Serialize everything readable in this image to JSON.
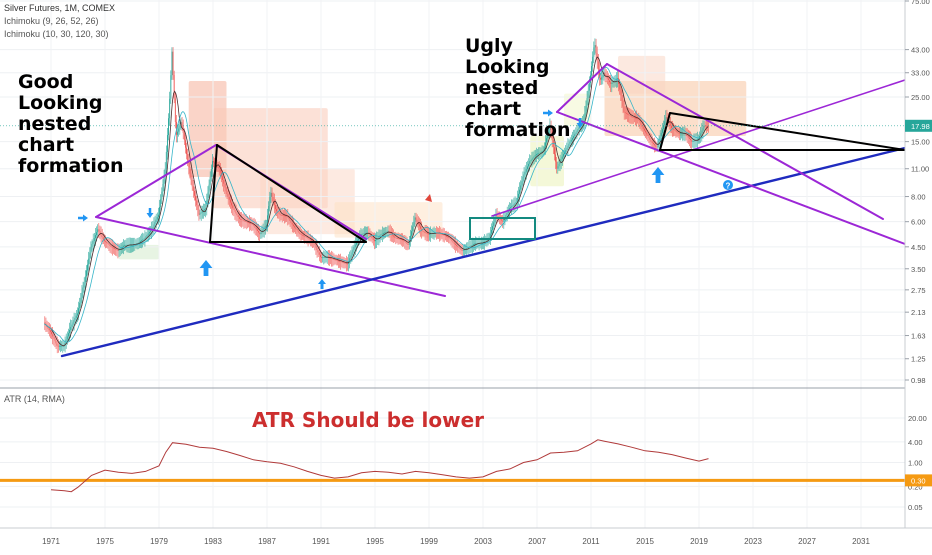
{
  "header": {
    "symbol_line": "Silver Futures, 1M, COMEX",
    "ichimoku_1": "Ichimoku (9, 26, 52, 26)",
    "ichimoku_2": "Ichimoku (10, 30, 120, 30)",
    "atr_label": "ATR (14, RMA)"
  },
  "annotations": {
    "good": "Good\nLooking\nnested\nchart\nformation",
    "ugly": "Ugly\nLooking\nnested\nchart\nformation",
    "atr_note": "ATR Should be lower"
  },
  "colors": {
    "price_up": "#26a69a",
    "price_down": "#ef5350",
    "purple_line": "#9c27d6",
    "blue_line": "#1f2bbf",
    "triangle": "#000000",
    "marker_arrow": "#2196f3",
    "atr_line": "#b03a3a",
    "atr_level": "#f59a12",
    "last_price_badge": "#26a69a",
    "box": "#138a80"
  },
  "chart_data": {
    "type": "candlestick",
    "title": "Silver Futures, 1M, COMEX",
    "price_scale": "log",
    "x_ticks": [
      "1971",
      "1975",
      "1979",
      "1983",
      "1987",
      "1991",
      "1995",
      "1999",
      "2003",
      "2007",
      "2011",
      "2015",
      "2019",
      "2023",
      "2027",
      "2031"
    ],
    "y_ticks": [
      75.0,
      43.0,
      33.0,
      25.0,
      15.0,
      11.0,
      8.0,
      6.0,
      4.5,
      3.5,
      2.75,
      2.13,
      1.63,
      1.25,
      0.98
    ],
    "last_price": 17.98,
    "price_path": [
      [
        1970.5,
        1.9
      ],
      [
        1971.0,
        1.7
      ],
      [
        1971.5,
        1.45
      ],
      [
        1972.0,
        1.45
      ],
      [
        1972.5,
        1.8
      ],
      [
        1973.0,
        2.1
      ],
      [
        1973.5,
        3.0
      ],
      [
        1974.0,
        4.5
      ],
      [
        1974.5,
        5.5
      ],
      [
        1975.0,
        4.8
      ],
      [
        1975.5,
        4.5
      ],
      [
        1976.0,
        4.3
      ],
      [
        1976.5,
        4.6
      ],
      [
        1977.0,
        4.6
      ],
      [
        1977.5,
        4.7
      ],
      [
        1978.0,
        5.0
      ],
      [
        1978.5,
        5.5
      ],
      [
        1979.0,
        6.5
      ],
      [
        1979.5,
        11.0
      ],
      [
        1979.8,
        22.0
      ],
      [
        1980.0,
        42.0
      ],
      [
        1980.3,
        16.0
      ],
      [
        1980.7,
        19.0
      ],
      [
        1981.0,
        14.0
      ],
      [
        1981.5,
        9.0
      ],
      [
        1982.0,
        6.5
      ],
      [
        1982.5,
        7.0
      ],
      [
        1983.0,
        12.0
      ],
      [
        1983.5,
        11.0
      ],
      [
        1984.0,
        8.5
      ],
      [
        1984.5,
        7.0
      ],
      [
        1985.0,
        6.2
      ],
      [
        1985.5,
        6.0
      ],
      [
        1986.0,
        5.8
      ],
      [
        1986.5,
        5.2
      ],
      [
        1987.0,
        5.8
      ],
      [
        1987.3,
        8.5
      ],
      [
        1987.7,
        6.8
      ],
      [
        1988.0,
        6.5
      ],
      [
        1988.5,
        6.4
      ],
      [
        1989.0,
        5.7
      ],
      [
        1989.5,
        5.2
      ],
      [
        1990.0,
        5.0
      ],
      [
        1990.5,
        4.7
      ],
      [
        1991.0,
        4.0
      ],
      [
        1991.5,
        4.0
      ],
      [
        1992.0,
        3.9
      ],
      [
        1992.5,
        3.8
      ],
      [
        1993.0,
        3.7
      ],
      [
        1993.5,
        4.5
      ],
      [
        1994.0,
        5.2
      ],
      [
        1994.5,
        5.3
      ],
      [
        1995.0,
        4.8
      ],
      [
        1995.5,
        5.2
      ],
      [
        1996.0,
        5.4
      ],
      [
        1996.5,
        5.0
      ],
      [
        1997.0,
        4.9
      ],
      [
        1997.5,
        4.6
      ],
      [
        1998.0,
        6.3
      ],
      [
        1998.5,
        5.4
      ],
      [
        1999.0,
        5.2
      ],
      [
        1999.5,
        5.3
      ],
      [
        2000.0,
        5.2
      ],
      [
        2000.5,
        5.0
      ],
      [
        2001.0,
        4.6
      ],
      [
        2001.5,
        4.3
      ],
      [
        2002.0,
        4.5
      ],
      [
        2002.5,
        4.7
      ],
      [
        2003.0,
        4.7
      ],
      [
        2003.5,
        5.0
      ],
      [
        2004.0,
        6.5
      ],
      [
        2004.5,
        6.0
      ],
      [
        2005.0,
        7.0
      ],
      [
        2005.5,
        7.5
      ],
      [
        2006.0,
        10.0
      ],
      [
        2006.5,
        12.0
      ],
      [
        2007.0,
        13.0
      ],
      [
        2007.5,
        13.5
      ],
      [
        2008.0,
        18.0
      ],
      [
        2008.5,
        11.0
      ],
      [
        2009.0,
        13.0
      ],
      [
        2009.5,
        15.0
      ],
      [
        2010.0,
        17.0
      ],
      [
        2010.5,
        19.0
      ],
      [
        2011.0,
        32.0
      ],
      [
        2011.3,
        47.0
      ],
      [
        2011.7,
        30.0
      ],
      [
        2012.0,
        33.0
      ],
      [
        2012.5,
        29.0
      ],
      [
        2013.0,
        31.0
      ],
      [
        2013.5,
        21.0
      ],
      [
        2014.0,
        20.0
      ],
      [
        2014.5,
        19.5
      ],
      [
        2015.0,
        17.0
      ],
      [
        2015.5,
        15.0
      ],
      [
        2015.9,
        14.0
      ],
      [
        2016.3,
        17.0
      ],
      [
        2016.6,
        20.0
      ],
      [
        2017.0,
        17.5
      ],
      [
        2017.5,
        16.5
      ],
      [
        2018.0,
        16.5
      ],
      [
        2018.5,
        15.0
      ],
      [
        2019.0,
        15.5
      ],
      [
        2019.4,
        18.0
      ],
      [
        2019.7,
        17.98
      ]
    ],
    "atr_ticks": [
      20.0,
      4.0,
      1.0,
      0.2,
      0.05
    ],
    "atr_level": 0.3,
    "atr_path": [
      [
        1971.0,
        0.16
      ],
      [
        1972.0,
        0.15
      ],
      [
        1972.5,
        0.14
      ],
      [
        1973.0,
        0.19
      ],
      [
        1974.0,
        0.42
      ],
      [
        1975.0,
        0.6
      ],
      [
        1976.0,
        0.52
      ],
      [
        1977.0,
        0.48
      ],
      [
        1978.0,
        0.55
      ],
      [
        1979.0,
        0.8
      ],
      [
        1979.5,
        2.0
      ],
      [
        1980.0,
        3.8
      ],
      [
        1981.0,
        3.4
      ],
      [
        1982.0,
        2.8
      ],
      [
        1983.0,
        2.6
      ],
      [
        1984.0,
        2.1
      ],
      [
        1985.0,
        1.6
      ],
      [
        1986.0,
        1.2
      ],
      [
        1987.0,
        1.05
      ],
      [
        1988.0,
        0.95
      ],
      [
        1989.0,
        0.75
      ],
      [
        1990.0,
        0.55
      ],
      [
        1991.0,
        0.42
      ],
      [
        1992.0,
        0.35
      ],
      [
        1993.0,
        0.38
      ],
      [
        1994.0,
        0.5
      ],
      [
        1995.0,
        0.55
      ],
      [
        1996.0,
        0.52
      ],
      [
        1997.0,
        0.46
      ],
      [
        1998.0,
        0.55
      ],
      [
        1999.0,
        0.5
      ],
      [
        2000.0,
        0.44
      ],
      [
        2001.0,
        0.38
      ],
      [
        2002.0,
        0.35
      ],
      [
        2003.0,
        0.38
      ],
      [
        2004.0,
        0.55
      ],
      [
        2005.0,
        0.65
      ],
      [
        2006.0,
        1.0
      ],
      [
        2007.0,
        1.2
      ],
      [
        2008.0,
        1.9
      ],
      [
        2009.0,
        2.0
      ],
      [
        2010.0,
        2.2
      ],
      [
        2011.0,
        3.5
      ],
      [
        2011.5,
        4.6
      ],
      [
        2012.0,
        4.2
      ],
      [
        2013.0,
        3.5
      ],
      [
        2014.0,
        2.8
      ],
      [
        2015.0,
        2.2
      ],
      [
        2016.0,
        2.0
      ],
      [
        2017.0,
        1.7
      ],
      [
        2018.0,
        1.35
      ],
      [
        2019.0,
        1.1
      ],
      [
        2019.7,
        1.3
      ]
    ]
  }
}
